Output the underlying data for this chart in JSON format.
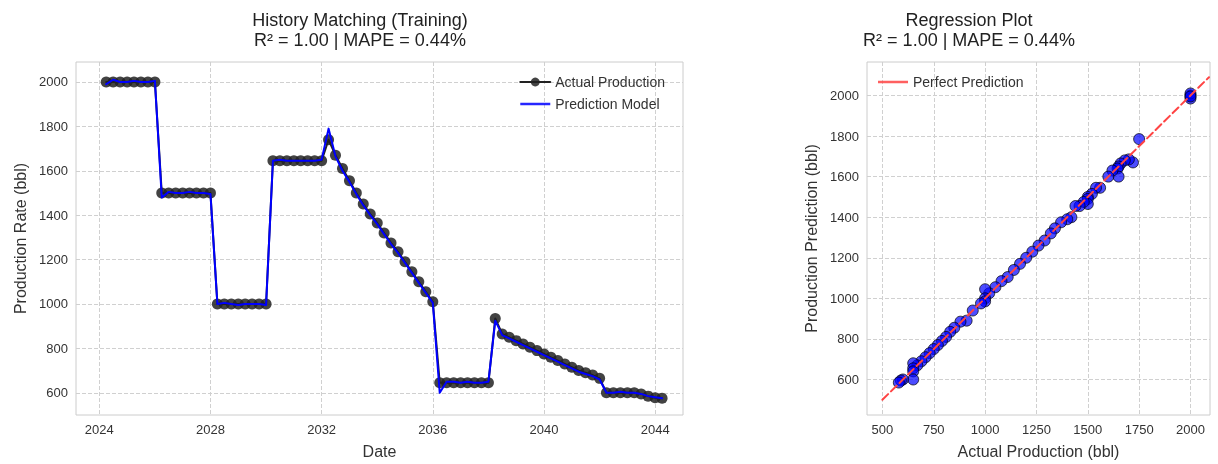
{
  "chart_data": [
    {
      "type": "line",
      "title": "History Matching (Training)",
      "subtitle": "R² = 1.00 | MAPE = 0.44%",
      "xlabel": "Date",
      "ylabel": "Production Rate (bbl)",
      "x": [
        "2024-04",
        "2024-07",
        "2024-10",
        "2025-01",
        "2025-04",
        "2025-07",
        "2025-10",
        "2026-01",
        "2026-04",
        "2026-07",
        "2026-10",
        "2027-01",
        "2027-04",
        "2027-07",
        "2027-10",
        "2028-01",
        "2028-04",
        "2028-07",
        "2028-10",
        "2029-01",
        "2029-04",
        "2029-07",
        "2029-10",
        "2030-01",
        "2030-04",
        "2030-07",
        "2030-10",
        "2031-01",
        "2031-04",
        "2031-07",
        "2031-10",
        "2032-01",
        "2032-04",
        "2032-07",
        "2032-10",
        "2033-01",
        "2033-04",
        "2033-07",
        "2033-10",
        "2034-01",
        "2034-04",
        "2034-07",
        "2034-10",
        "2035-01",
        "2035-04",
        "2035-07",
        "2035-10",
        "2036-01",
        "2036-04",
        "2036-07",
        "2036-10",
        "2037-01",
        "2037-04",
        "2037-07",
        "2037-10",
        "2038-01",
        "2038-04",
        "2038-07",
        "2038-10",
        "2039-01",
        "2039-04",
        "2039-07",
        "2039-10",
        "2040-01",
        "2040-04",
        "2040-07",
        "2040-10",
        "2041-01",
        "2041-04",
        "2041-07",
        "2041-10",
        "2042-01",
        "2042-04",
        "2042-07",
        "2042-10",
        "2043-01",
        "2043-04",
        "2043-07",
        "2043-10",
        "2044-01",
        "2044-04"
      ],
      "series": [
        {
          "name": "Actual Production",
          "color": "#222222",
          "marker": "circle",
          "values": [
            2000,
            2000,
            2000,
            2000,
            2000,
            2000,
            2000,
            2000,
            1500,
            1500,
            1500,
            1500,
            1500,
            1500,
            1500,
            1500,
            1000,
            1000,
            1000,
            1000,
            1000,
            1000,
            1000,
            1000,
            1645,
            1645,
            1645,
            1645,
            1645,
            1645,
            1645,
            1645,
            1740,
            1670,
            1610,
            1555,
            1500,
            1450,
            1405,
            1365,
            1320,
            1275,
            1235,
            1190,
            1145,
            1100,
            1055,
            1010,
            645,
            645,
            645,
            645,
            645,
            645,
            645,
            645,
            935,
            865,
            850,
            835,
            820,
            805,
            790,
            775,
            760,
            745,
            730,
            715,
            700,
            690,
            680,
            665,
            600,
            600,
            600,
            600,
            600,
            595,
            585,
            578,
            575
          ]
        },
        {
          "name": "Prediction Model",
          "color": "#0000ff",
          "marker": "none",
          "values": [
            1990,
            2010,
            2000,
            2000,
            2005,
            2000,
            2000,
            2005,
            1480,
            1505,
            1500,
            1500,
            1505,
            1500,
            1500,
            1495,
            1000,
            1005,
            1000,
            995,
            1000,
            1000,
            1000,
            995,
            1645,
            1650,
            1645,
            1645,
            1645,
            1645,
            1645,
            1650,
            1790,
            1665,
            1600,
            1550,
            1495,
            1445,
            1400,
            1360,
            1315,
            1270,
            1230,
            1185,
            1140,
            1095,
            1050,
            1005,
            600,
            650,
            650,
            645,
            650,
            645,
            645,
            650,
            925,
            860,
            845,
            830,
            815,
            800,
            785,
            770,
            755,
            740,
            725,
            710,
            695,
            685,
            675,
            660,
            600,
            600,
            605,
            600,
            600,
            595,
            585,
            580,
            575
          ]
        }
      ],
      "xlim": [
        "2023-03",
        "2045-01"
      ],
      "ylim": [
        500,
        2090
      ],
      "xticks": [
        "2024",
        "2028",
        "2032",
        "2036",
        "2040",
        "2044"
      ],
      "yticks": [
        600,
        800,
        1000,
        1200,
        1400,
        1600,
        1800,
        2000
      ],
      "grid": true,
      "legend": "top right"
    },
    {
      "type": "scatter",
      "title": "Regression Plot",
      "subtitle": "R² = 1.00 | MAPE = 0.44%",
      "xlabel": "Actual Production (bbl)",
      "ylabel": "Production Prediction (bbl)",
      "series": [
        {
          "color": "#0000ff",
          "marker": "circle",
          "x": [
            2000,
            2000,
            2000,
            2000,
            1750,
            1720,
            1700,
            1680,
            1660,
            1650,
            1645,
            1650,
            1620,
            1600,
            1560,
            1540,
            1520,
            1500,
            1500,
            1500,
            1480,
            1460,
            1440,
            1420,
            1400,
            1370,
            1340,
            1320,
            1290,
            1260,
            1230,
            1200,
            1170,
            1140,
            1110,
            1080,
            1050,
            1020,
            1000,
            1000,
            1000,
            980,
            940,
            910,
            880,
            850,
            830,
            810,
            790,
            770,
            750,
            730,
            710,
            690,
            670,
            650,
            650,
            650,
            650,
            600,
            590,
            580
          ],
          "values": [
            2000,
            1985,
            2010,
            1995,
            1785,
            1670,
            1685,
            1680,
            1665,
            1650,
            1640,
            1600,
            1630,
            1600,
            1545,
            1545,
            1515,
            1500,
            1490,
            1465,
            1475,
            1455,
            1455,
            1400,
            1390,
            1375,
            1345,
            1320,
            1285,
            1260,
            1230,
            1200,
            1170,
            1140,
            1105,
            1085,
            1055,
            1025,
            1045,
            1000,
            985,
            975,
            940,
            890,
            885,
            855,
            835,
            810,
            790,
            770,
            750,
            730,
            710,
            690,
            670,
            680,
            655,
            640,
            600,
            600,
            595,
            585
          ]
        },
        {
          "type": "line",
          "name": "Perfect Prediction",
          "color": "#ff4444",
          "marker": "none",
          "line_style": "dashed",
          "x": [
            500,
            2090
          ],
          "values": [
            500,
            2090
          ]
        }
      ],
      "xlim": [
        425,
        2095
      ],
      "ylim": [
        425,
        2165
      ],
      "xticks": [
        500,
        750,
        1000,
        1250,
        1500,
        1750,
        2000
      ],
      "yticks": [
        600,
        800,
        1000,
        1200,
        1400,
        1600,
        1800,
        2000
      ],
      "grid": true,
      "legend": "top left"
    }
  ]
}
